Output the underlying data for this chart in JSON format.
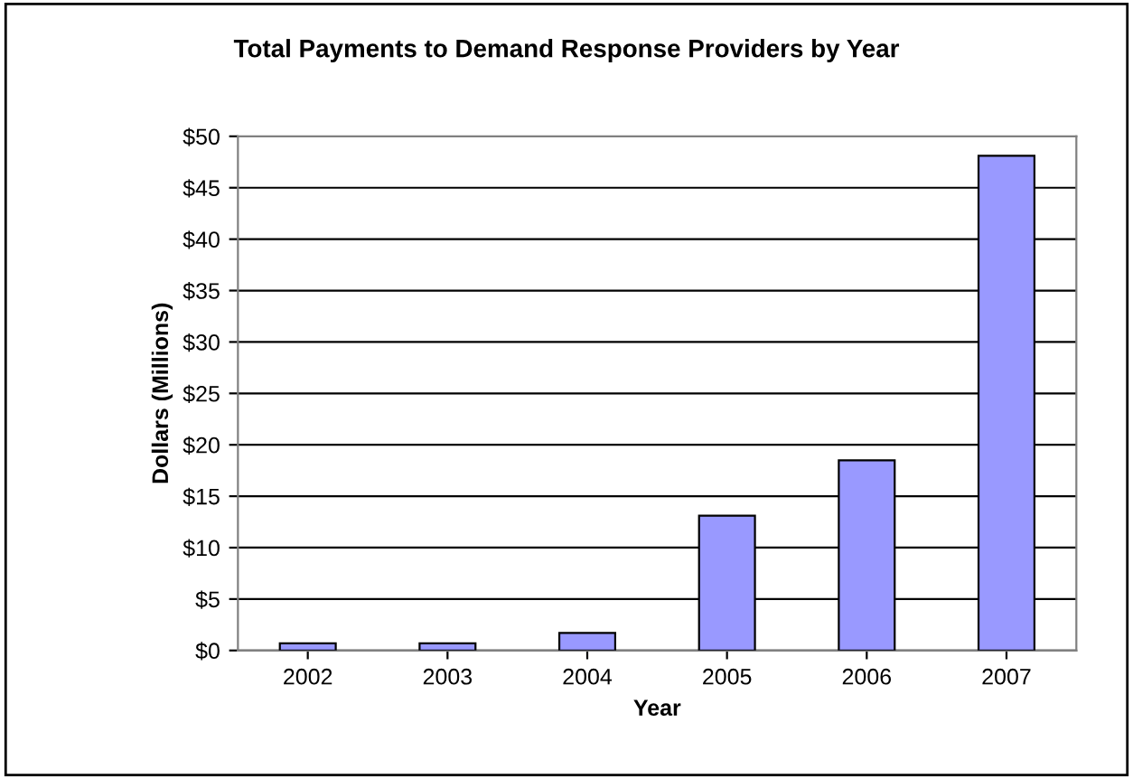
{
  "chart_data": {
    "type": "bar",
    "title": "Total Payments to Demand Response Providers by Year",
    "xlabel": "Year",
    "ylabel": "Dollars (Millions)",
    "categories": [
      "2002",
      "2003",
      "2004",
      "2005",
      "2006",
      "2007"
    ],
    "values": [
      0.7,
      0.7,
      1.7,
      13.1,
      18.5,
      48.1
    ],
    "color": "#9999ff",
    "ylim": [
      0,
      50
    ],
    "yticks": [
      {
        "value": 0,
        "label": "$0"
      },
      {
        "value": 5,
        "label": "$5"
      },
      {
        "value": 10,
        "label": "$10"
      },
      {
        "value": 15,
        "label": "$15"
      },
      {
        "value": 20,
        "label": "$20"
      },
      {
        "value": 25,
        "label": "$25"
      },
      {
        "value": 30,
        "label": "$30"
      },
      {
        "value": 35,
        "label": "$35"
      },
      {
        "value": 40,
        "label": "$40"
      },
      {
        "value": 45,
        "label": "$45"
      },
      {
        "value": 50,
        "label": "$50"
      }
    ],
    "grid": "y",
    "legend": false
  }
}
